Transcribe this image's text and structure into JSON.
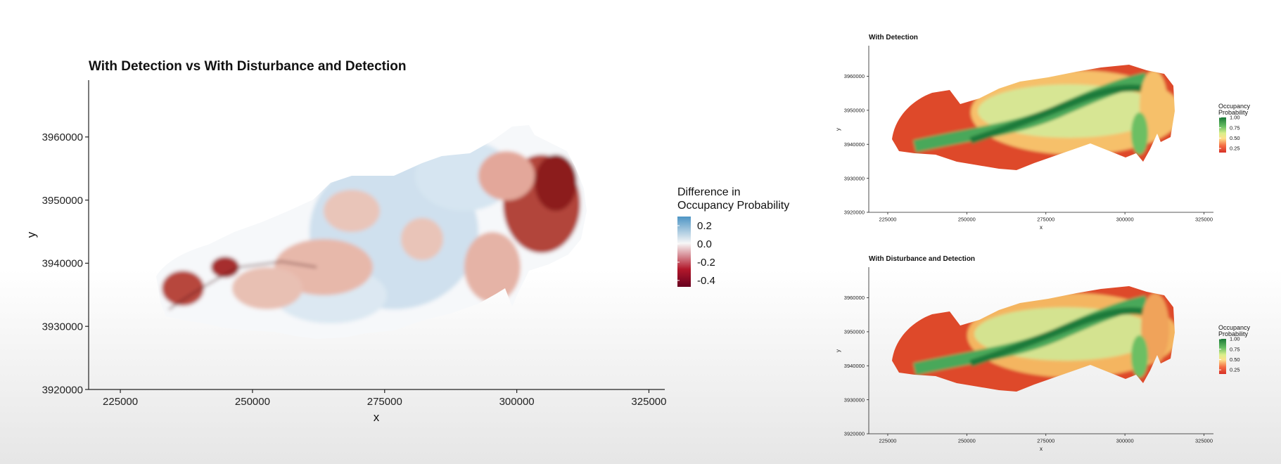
{
  "chart_data": [
    {
      "type": "heatmap",
      "title": "With Detection vs With Disturbance and Detection",
      "xlabel": "x",
      "ylabel": "y",
      "xlim": [
        219000,
        328000
      ],
      "ylim": [
        3920000,
        3969000
      ],
      "x_ticks": [
        225000,
        250000,
        275000,
        300000,
        325000
      ],
      "y_ticks": [
        3920000,
        3930000,
        3940000,
        3950000,
        3960000
      ],
      "x_tick_labels": [
        "225000",
        "250000",
        "275000",
        "300000",
        "325000"
      ],
      "y_tick_labels": [
        "3920000",
        "3930000",
        "3940000",
        "3950000",
        "3960000"
      ],
      "legend": {
        "title": [
          "Difference in",
          "Occupancy Probability"
        ],
        "labels": [
          "0.2",
          "0.0",
          "-0.2",
          "-0.4"
        ],
        "values": [
          0.2,
          0.0,
          -0.2,
          -0.4
        ],
        "range": [
          -0.47,
          0.3
        ],
        "colors": [
          "#4d95c4",
          "#f7f7f7",
          "#b2182b",
          "#67001f"
        ],
        "position": "right"
      },
      "grid": false
    },
    {
      "type": "heatmap",
      "title": "With Detection",
      "xlabel": "x",
      "ylabel": "y",
      "xlim": [
        219000,
        328000
      ],
      "ylim": [
        3920000,
        3969000
      ],
      "x_ticks": [
        225000,
        250000,
        275000,
        300000,
        325000
      ],
      "y_ticks": [
        3920000,
        3930000,
        3940000,
        3950000,
        3960000
      ],
      "x_tick_labels": [
        "225000",
        "250000",
        "275000",
        "300000",
        "325000"
      ],
      "y_tick_labels": [
        "3920000",
        "3930000",
        "3940000",
        "3950000",
        "3960000"
      ],
      "legend": {
        "title": [
          "Occupancy",
          "Probability"
        ],
        "labels": [
          "1.00",
          "0.75",
          "0.50",
          "0.25"
        ],
        "values": [
          1.0,
          0.75,
          0.5,
          0.25
        ],
        "range": [
          0.15,
          1.0
        ],
        "colors": [
          "#d73027",
          "#f46d43",
          "#fee08b",
          "#d9ef8b",
          "#66bd63",
          "#1a7837"
        ],
        "position": "right"
      },
      "grid": false
    },
    {
      "type": "heatmap",
      "title": "With Disturbance and Detection",
      "xlabel": "x",
      "ylabel": "y",
      "xlim": [
        219000,
        328000
      ],
      "ylim": [
        3920000,
        3969000
      ],
      "x_ticks": [
        225000,
        250000,
        275000,
        300000,
        325000
      ],
      "y_ticks": [
        3920000,
        3930000,
        3940000,
        3950000,
        3960000
      ],
      "x_tick_labels": [
        "225000",
        "250000",
        "275000",
        "300000",
        "325000"
      ],
      "y_tick_labels": [
        "3920000",
        "3930000",
        "3940000",
        "3950000",
        "3960000"
      ],
      "legend": {
        "title": [
          "Occupancy",
          "Probability"
        ],
        "labels": [
          "1.00",
          "0.75",
          "0.50",
          "0.25"
        ],
        "values": [
          1.0,
          0.75,
          0.5,
          0.25
        ],
        "range": [
          0.15,
          1.0
        ],
        "colors": [
          "#d73027",
          "#f46d43",
          "#fee08b",
          "#d9ef8b",
          "#66bd63",
          "#1a7837"
        ],
        "position": "right"
      },
      "grid": false
    }
  ]
}
